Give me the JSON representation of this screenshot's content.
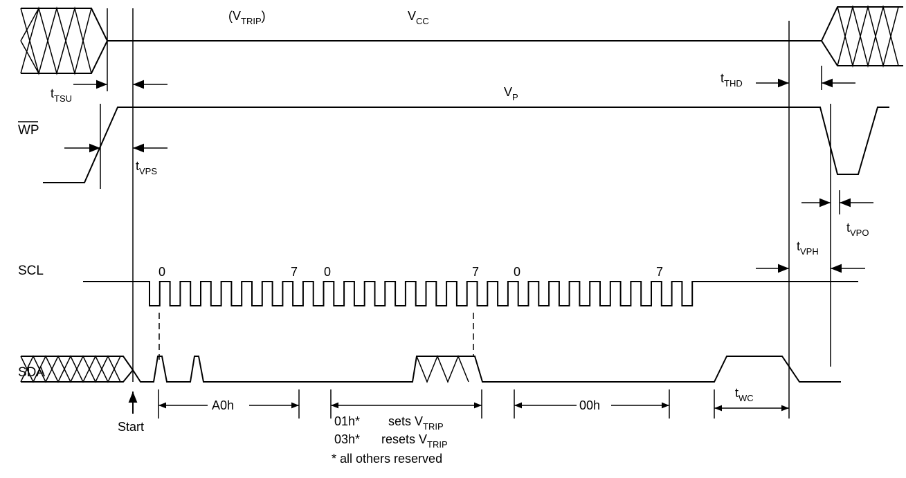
{
  "labels": {
    "vtrip": {
      "open": "(V",
      "sub": "TRIP",
      "close": ")"
    },
    "vcc": {
      "main": "V",
      "sub": "CC"
    },
    "vp": {
      "main": "V",
      "sub": "P"
    },
    "ttsu": {
      "main": "t",
      "sub": "TSU"
    },
    "tthd": {
      "main": "t",
      "sub": "THD"
    },
    "tvps": {
      "main": "t",
      "sub": "VPS"
    },
    "tvph": {
      "main": "t",
      "sub": "VPH"
    },
    "tvpo": {
      "main": "t",
      "sub": "VPO"
    },
    "twc": {
      "main": "t",
      "sub": "WC"
    },
    "wp": "WP",
    "scl": "SCL",
    "sda": "SDA",
    "start": "Start",
    "a0h": "A0h",
    "h00": "00h",
    "h01": "01h*",
    "h03": "03h*",
    "sets": {
      "main": "sets V",
      "sub": "TRIP"
    },
    "resets": {
      "main": "resets V",
      "sub": "TRIP"
    },
    "reserved": "* all others reserved",
    "bit_numbers": [
      "0",
      "7",
      "0",
      "7",
      "0",
      "7"
    ]
  }
}
